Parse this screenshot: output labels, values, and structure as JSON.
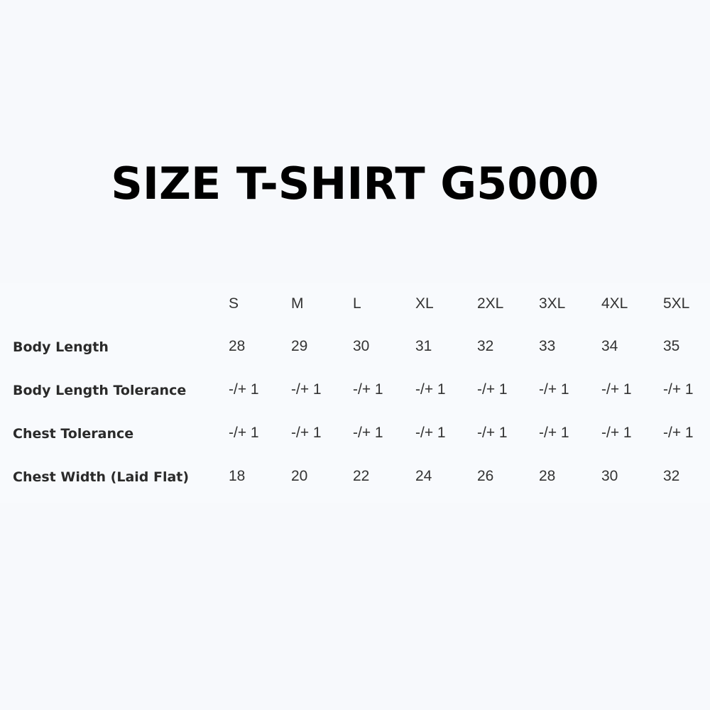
{
  "title": "SIZE T-SHIRT G5000",
  "table": {
    "columns": [
      "S",
      "M",
      "L",
      "XL",
      "2XL",
      "3XL",
      "4XL",
      "5XL"
    ],
    "rows": [
      {
        "label": "Body Length",
        "values": [
          "28",
          "29",
          "30",
          "31",
          "32",
          "33",
          "34",
          "35"
        ]
      },
      {
        "label": "Body Length Tolerance",
        "values": [
          "-/+ 1",
          "-/+ 1",
          "-/+ 1",
          "-/+ 1",
          "-/+ 1",
          "-/+ 1",
          "-/+ 1",
          "-/+ 1"
        ]
      },
      {
        "label": "Chest Tolerance",
        "values": [
          "-/+ 1",
          "-/+ 1",
          "-/+ 1",
          "-/+ 1",
          "-/+ 1",
          "-/+ 1",
          "-/+ 1",
          "-/+ 1"
        ]
      },
      {
        "label": "Chest Width (Laid Flat)",
        "values": [
          "18",
          "20",
          "22",
          "24",
          "26",
          "28",
          "30",
          "32"
        ]
      }
    ]
  }
}
